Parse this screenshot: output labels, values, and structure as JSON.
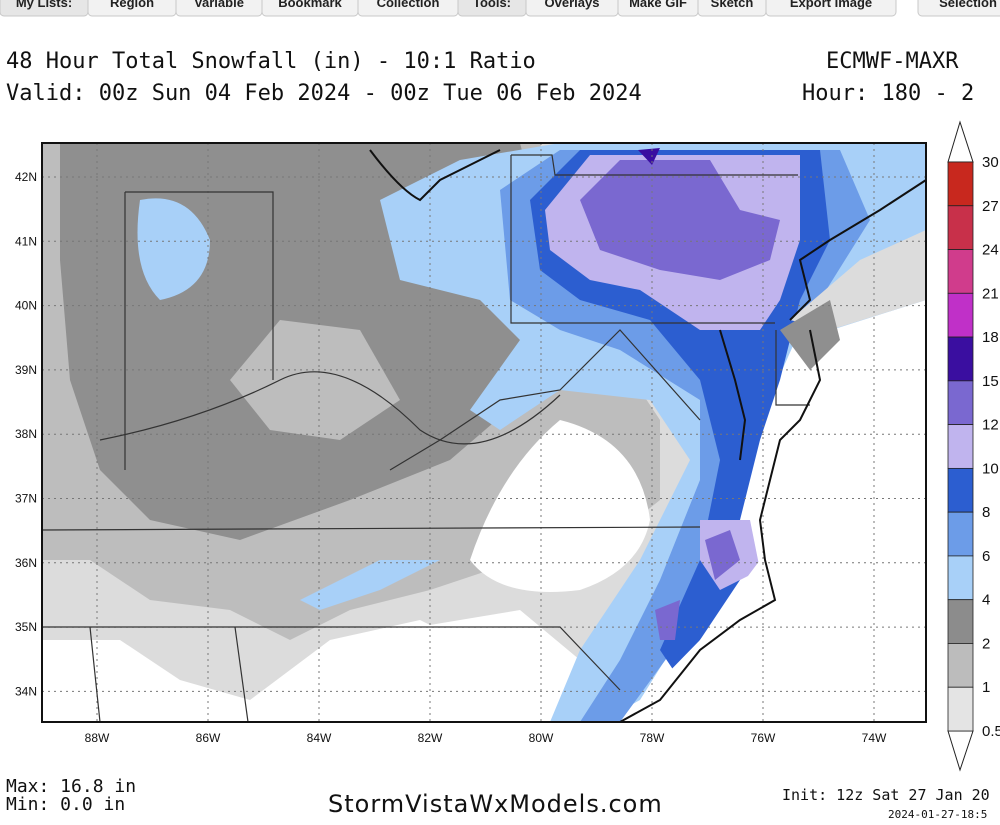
{
  "toolbar": {
    "group1": [
      "My Lists:",
      "Region",
      "Variable",
      "Bookmark",
      "Collection"
    ],
    "group2": [
      "Tools:",
      "Overlays",
      "Make GIF",
      "Sketch",
      "Export Image"
    ],
    "group3": [
      "Selection"
    ]
  },
  "header": {
    "title": "48 Hour Total Snowfall (in) - 10:1 Ratio",
    "valid": "Valid: 00z Sun 04 Feb 2024 - 00z Tue 06 Feb 2024",
    "model": "ECMWF-MAXR",
    "hour": "Hour: 180 - 2"
  },
  "map": {
    "lat_labels": [
      "42N",
      "41N",
      "40N",
      "39N",
      "38N",
      "37N",
      "36N",
      "35N",
      "34N"
    ],
    "lon_labels": [
      "88W",
      "86W",
      "84W",
      "82W",
      "80W",
      "78W",
      "76W",
      "74W"
    ]
  },
  "colorbar": {
    "labels": [
      "30",
      "27",
      "24",
      "21",
      "18",
      "15",
      "12",
      "10",
      "8",
      "6",
      "4",
      "2",
      "1",
      "0.5"
    ]
  },
  "footer": {
    "max": "Max: 16.8 in",
    "min": "Min: 0.0 in",
    "site": "StormVistaWxModels.com",
    "init": "Init: 12z Sat 27 Jan 20",
    "stamp": "2024-01-27-18:5"
  }
}
